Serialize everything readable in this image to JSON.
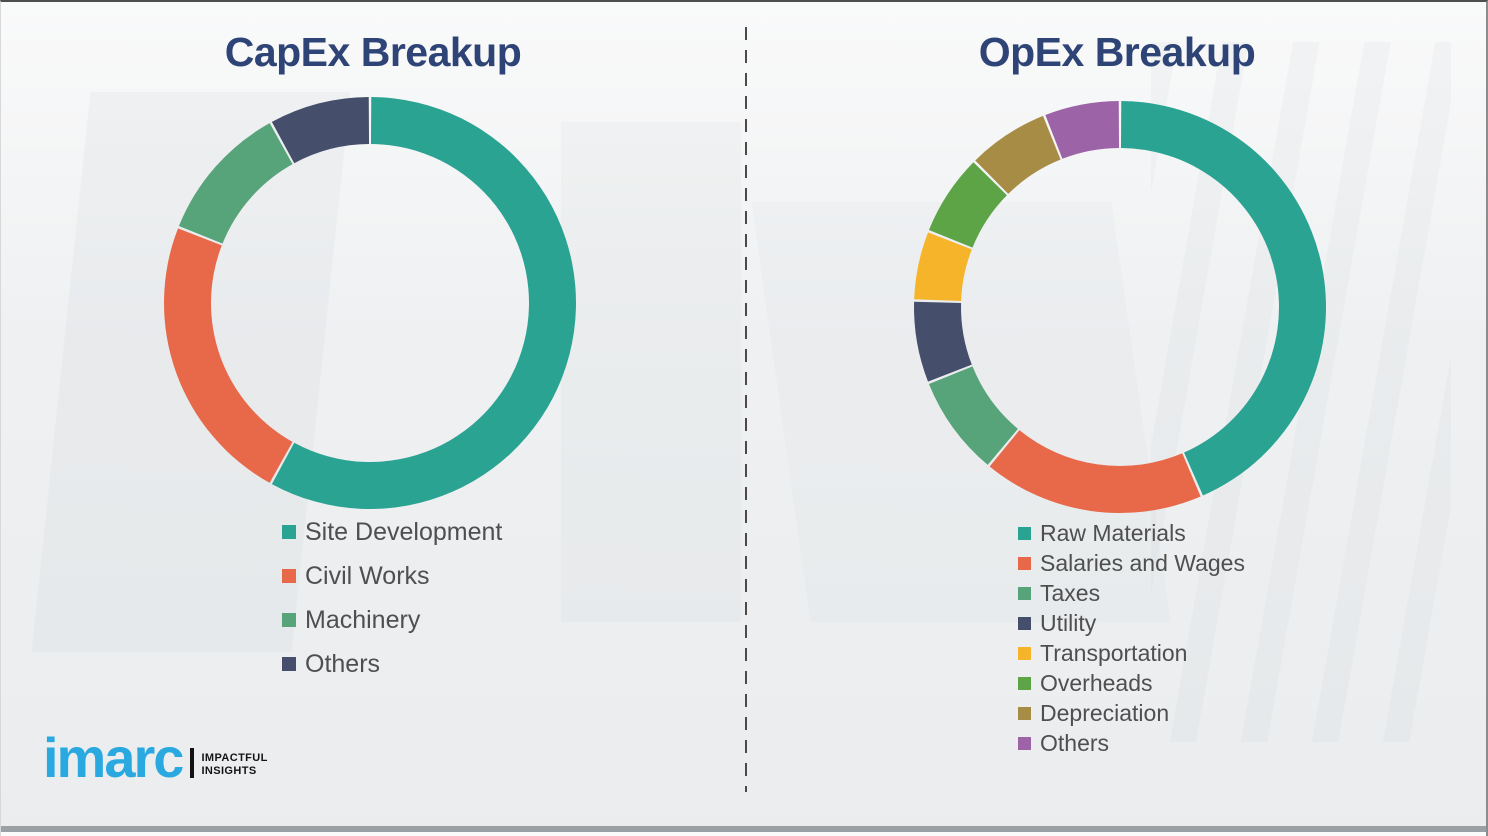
{
  "page": {
    "background_color": "#F1F2F3",
    "divider_color": "#4A4A4A",
    "title_color": "#2E4476",
    "legend_text_color": "#4F4F4F"
  },
  "chart_data": [
    {
      "type": "pie",
      "variant": "donut",
      "title": "CapEx Breakup",
      "labels": [
        "Site Development",
        "Civil Works",
        "Machinery",
        "Others"
      ],
      "values": [
        58,
        23,
        11,
        8
      ],
      "unit": "percent-estimated-from-arc-angles",
      "colors": [
        "#2BA392",
        "#E7694A",
        "#57A47A",
        "#454F6B"
      ],
      "start_angle_deg": 0,
      "direction": "clockwise",
      "legend_position": "below-left",
      "data_labels_shown": false
    },
    {
      "type": "pie",
      "variant": "donut",
      "title": "OpEx Breakup",
      "labels": [
        "Raw Materials",
        "Salaries and Wages",
        "Taxes",
        "Utility",
        "Transportation",
        "Overheads",
        "Depreciation",
        "Others"
      ],
      "values": [
        43.5,
        17.5,
        8,
        6.5,
        5.5,
        6.5,
        6.5,
        6
      ],
      "unit": "percent-estimated-from-arc-angles",
      "colors": [
        "#2BA392",
        "#E7694A",
        "#57A47A",
        "#454F6B",
        "#F6B42A",
        "#5CA445",
        "#A78C45",
        "#9C64A6"
      ],
      "start_angle_deg": 0,
      "direction": "clockwise",
      "legend_position": "below-left",
      "data_labels_shown": false
    }
  ],
  "logo": {
    "brand": "imarc",
    "tagline_line1": "IMPACTFUL",
    "tagline_line2": "INSIGHTS",
    "brand_color": "#29A9E0"
  }
}
